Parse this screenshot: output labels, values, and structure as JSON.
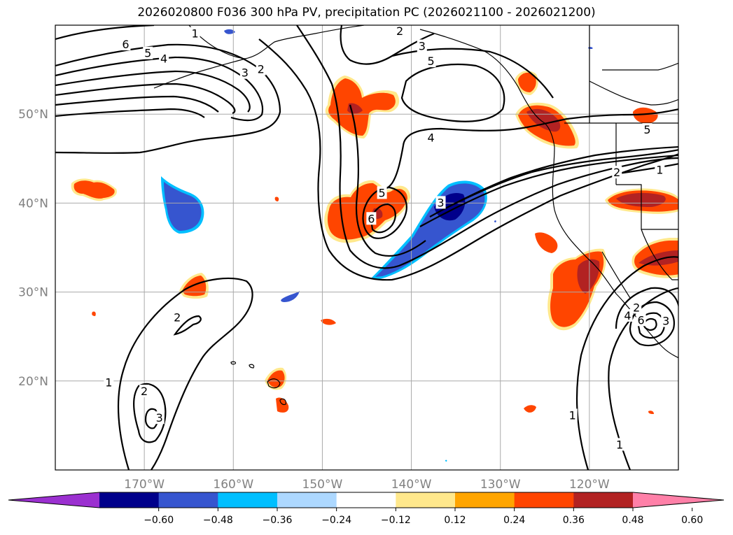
{
  "title": "2026020800 F036 300 hPa PV, precipitation PC (2026021100 - 2026021200)",
  "map_extent": {
    "lon": [
      -180,
      -110
    ],
    "lat": [
      10,
      60
    ]
  },
  "lat_ticks": [
    {
      "value": 50,
      "label": "50°N"
    },
    {
      "value": 40,
      "label": "40°N"
    },
    {
      "value": 30,
      "label": "30°N"
    },
    {
      "value": 20,
      "label": "20°N"
    }
  ],
  "lon_ticks": [
    {
      "value": -170,
      "label": "170°W"
    },
    {
      "value": -160,
      "label": "160°W"
    },
    {
      "value": -150,
      "label": "150°W"
    },
    {
      "value": -140,
      "label": "140°W"
    },
    {
      "value": -130,
      "label": "130°W"
    },
    {
      "value": -120,
      "label": "120°W"
    }
  ],
  "colorbar": {
    "colors": [
      "#9b30d0",
      "#00008b",
      "#3655cf",
      "#00bfff",
      "#add8ff",
      "#ffffff",
      "#ffe88c",
      "#ffa500",
      "#ff4500",
      "#b22222",
      "#ff80a8"
    ],
    "tick_labels": [
      "−0.60",
      "−0.48",
      "−0.36",
      "−0.24",
      "−0.12",
      "0.12",
      "0.24",
      "0.36",
      "0.48",
      "0.60"
    ]
  },
  "palette": {
    "pos_outer": "#ffe88c",
    "pos_mid": "#ff4500",
    "pos_core": "#b22222",
    "neg_outer": "#00bfff",
    "neg_mid": "#3655cf",
    "neg_core": "#00008b",
    "grid": "#a9a9a9",
    "contour": "#000000"
  },
  "contour_labels": [
    {
      "lon": -172.1,
      "lat": 57.8,
      "text": "6"
    },
    {
      "lon": -169.6,
      "lat": 56.8,
      "text": "5"
    },
    {
      "lon": -167.8,
      "lat": 56.2,
      "text": "4"
    },
    {
      "lon": -158.7,
      "lat": 54.6,
      "text": "3"
    },
    {
      "lon": -156.9,
      "lat": 55.0,
      "text": "2"
    },
    {
      "lon": -164.3,
      "lat": 59.0,
      "text": "1"
    },
    {
      "lon": -141.3,
      "lat": 59.3,
      "text": "2"
    },
    {
      "lon": -138.8,
      "lat": 57.6,
      "text": "3"
    },
    {
      "lon": -137.8,
      "lat": 55.9,
      "text": "5"
    },
    {
      "lon": -137.8,
      "lat": 47.3,
      "text": "4"
    },
    {
      "lon": -143.3,
      "lat": 41.1,
      "text": "5"
    },
    {
      "lon": -144.5,
      "lat": 38.2,
      "text": "6"
    },
    {
      "lon": -136.7,
      "lat": 40.0,
      "text": "3"
    },
    {
      "lon": -113.5,
      "lat": 48.2,
      "text": "5"
    },
    {
      "lon": -116.9,
      "lat": 43.4,
      "text": "2"
    },
    {
      "lon": -112.1,
      "lat": 43.7,
      "text": "1"
    },
    {
      "lon": -114.7,
      "lat": 28.2,
      "text": "2"
    },
    {
      "lon": -115.7,
      "lat": 27.3,
      "text": "4"
    },
    {
      "lon": -114.2,
      "lat": 26.8,
      "text": "6"
    },
    {
      "lon": -111.4,
      "lat": 26.7,
      "text": "3"
    },
    {
      "lon": -174.0,
      "lat": 19.8,
      "text": "1"
    },
    {
      "lon": -170.0,
      "lat": 18.8,
      "text": "2"
    },
    {
      "lon": -168.3,
      "lat": 15.8,
      "text": "3"
    },
    {
      "lon": -166.3,
      "lat": 27.1,
      "text": "2"
    },
    {
      "lon": -121.9,
      "lat": 16.1,
      "text": "1"
    },
    {
      "lon": -116.6,
      "lat": 12.8,
      "text": "1"
    }
  ]
}
